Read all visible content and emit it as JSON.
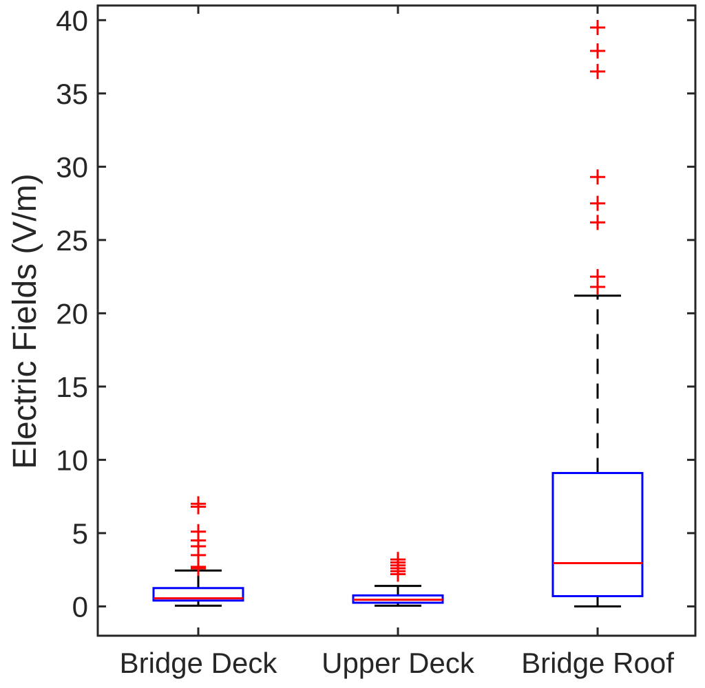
{
  "chart_data": {
    "type": "box",
    "ylabel": "Electric Fields (V/m)",
    "xlabel": "",
    "ylim": [
      -2,
      41
    ],
    "yticks": [
      0,
      5,
      10,
      15,
      20,
      25,
      30,
      35,
      40
    ],
    "grid": false,
    "categories": [
      "Bridge Deck",
      "Upper Deck",
      "Bridge Roof"
    ],
    "boxes": [
      {
        "category": "Bridge Deck",
        "whisker_low": 0.05,
        "q1": 0.4,
        "median": 0.55,
        "q3": 1.25,
        "whisker_high": 2.45,
        "outliers": [
          2.6,
          2.7,
          3.5,
          4.1,
          4.5,
          5.1,
          6.8,
          7.0
        ]
      },
      {
        "category": "Upper Deck",
        "whisker_low": 0.05,
        "q1": 0.25,
        "median": 0.45,
        "q3": 0.75,
        "whisker_high": 1.4,
        "outliers": [
          2.2,
          2.4,
          2.6,
          2.8,
          3.0,
          3.2
        ]
      },
      {
        "category": "Bridge Roof",
        "whisker_low": 0.0,
        "q1": 0.7,
        "median": 2.95,
        "q3": 9.1,
        "whisker_high": 21.2,
        "outliers": [
          21.8,
          22.5,
          26.2,
          27.5,
          29.3,
          36.5,
          37.9,
          39.5
        ]
      }
    ],
    "colors": {
      "box": "#0000ff",
      "median": "#ff0000",
      "whisker": "#000000",
      "outlier": "#ff0000",
      "axis": "#262626"
    }
  }
}
